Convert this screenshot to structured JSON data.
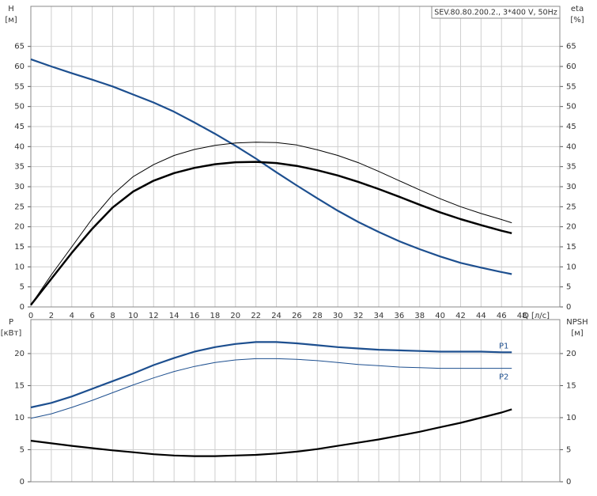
{
  "chart_data": [
    {
      "type": "line",
      "title": "SEV.80.80.200.2., 3*400 V, 50Hz",
      "y_label": "H",
      "y_unit": "[м]",
      "y2_label": "eta",
      "y2_unit": "[%]",
      "x_label": "Q [л/с]",
      "x": [
        0,
        2,
        4,
        6,
        8,
        10,
        12,
        14,
        16,
        18,
        20,
        22,
        24,
        26,
        28,
        30,
        32,
        34,
        36,
        38,
        40,
        42,
        44,
        46,
        47
      ],
      "xlim": [
        0,
        51.7
      ],
      "xticks": [
        0,
        2,
        4,
        6,
        8,
        10,
        12,
        14,
        16,
        18,
        20,
        22,
        24,
        26,
        28,
        30,
        32,
        34,
        36,
        38,
        40,
        42,
        44,
        46,
        48
      ],
      "xtick_labels": true,
      "ylim": [
        0,
        75
      ],
      "yticks": [
        0,
        5,
        10,
        15,
        20,
        25,
        30,
        35,
        40,
        45,
        50,
        55,
        60,
        65
      ],
      "y2lim": [
        0,
        75
      ],
      "y2ticks": [
        0,
        5,
        10,
        15,
        20,
        25,
        30,
        35,
        40,
        45,
        50,
        55,
        60,
        65
      ],
      "grid": true,
      "series": [
        {
          "color": "#1d4f8f",
          "line_width": 2.2,
          "values": [
            61.8,
            60.0,
            58.3,
            56.7,
            55.0,
            53.0,
            51.0,
            48.7,
            46.0,
            43.2,
            40.2,
            37.0,
            33.6,
            30.3,
            27.1,
            24.0,
            21.2,
            18.7,
            16.4,
            14.4,
            12.6,
            11.0,
            9.8,
            8.7,
            8.2
          ]
        },
        {
          "color": "#000000",
          "line_width": 1,
          "axis": "y2",
          "values": [
            0.5,
            8,
            15,
            22,
            28,
            32.5,
            35.5,
            37.8,
            39.3,
            40.3,
            40.9,
            41.1,
            41.0,
            40.4,
            39.2,
            37.8,
            36.0,
            33.8,
            31.5,
            29.2,
            27.0,
            25.0,
            23.3,
            21.8,
            21.0
          ]
        },
        {
          "color": "#000000",
          "line_width": 2.5,
          "axis": "y2",
          "values": [
            0.5,
            7,
            13.5,
            19.5,
            24.8,
            28.8,
            31.5,
            33.4,
            34.7,
            35.6,
            36.1,
            36.2,
            35.9,
            35.2,
            34.1,
            32.8,
            31.2,
            29.4,
            27.5,
            25.5,
            23.6,
            21.9,
            20.4,
            19.0,
            18.4
          ]
        }
      ]
    },
    {
      "type": "line",
      "y_label": "P",
      "y_unit": "[кВт]",
      "y2_label": "NPSH",
      "y2_unit": "[м]",
      "x": [
        0,
        2,
        4,
        6,
        8,
        10,
        12,
        14,
        16,
        18,
        20,
        22,
        24,
        26,
        28,
        30,
        32,
        34,
        36,
        38,
        40,
        42,
        44,
        46,
        47
      ],
      "xlim": [
        0,
        51.7
      ],
      "xticks": [
        0,
        2,
        4,
        6,
        8,
        10,
        12,
        14,
        16,
        18,
        20,
        22,
        24,
        26,
        28,
        30,
        32,
        34,
        36,
        38,
        40,
        42,
        44,
        46,
        48
      ],
      "xtick_labels": false,
      "ylim": [
        0,
        25.3
      ],
      "yticks": [
        0,
        5,
        10,
        15,
        20
      ],
      "y2lim": [
        0,
        25.3
      ],
      "y2ticks": [
        0,
        5,
        10,
        15,
        20
      ],
      "grid": true,
      "series": [
        {
          "name": "P1",
          "color": "#1d4f8f",
          "line_width": 2.2,
          "values": [
            11.6,
            12.3,
            13.3,
            14.5,
            15.7,
            16.9,
            18.2,
            19.3,
            20.3,
            21.0,
            21.5,
            21.8,
            21.8,
            21.6,
            21.3,
            21.0,
            20.8,
            20.6,
            20.5,
            20.4,
            20.3,
            20.3,
            20.3,
            20.2,
            20.2
          ]
        },
        {
          "name": "P2",
          "color": "#1d4f8f",
          "line_width": 1,
          "values": [
            9.9,
            10.6,
            11.6,
            12.7,
            13.9,
            15.1,
            16.2,
            17.2,
            18.0,
            18.6,
            19.0,
            19.2,
            19.2,
            19.1,
            18.9,
            18.6,
            18.3,
            18.1,
            17.9,
            17.8,
            17.7,
            17.7,
            17.7,
            17.7,
            17.7
          ]
        },
        {
          "color": "#000000",
          "line_width": 2.2,
          "axis": "y2",
          "values": [
            6.4,
            6.0,
            5.6,
            5.25,
            4.9,
            4.6,
            4.3,
            4.1,
            4.0,
            4.0,
            4.1,
            4.2,
            4.4,
            4.7,
            5.1,
            5.6,
            6.1,
            6.6,
            7.2,
            7.8,
            8.5,
            9.2,
            10.0,
            10.8,
            11.3
          ]
        }
      ]
    }
  ]
}
